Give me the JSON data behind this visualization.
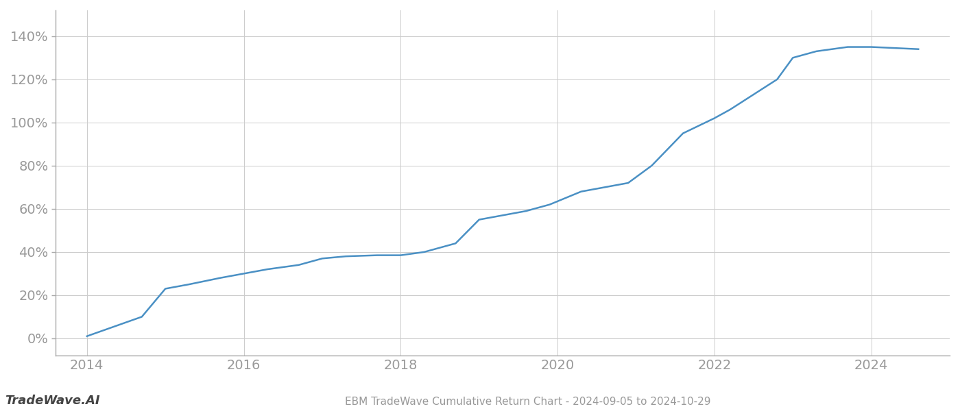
{
  "title": "EBM TradeWave Cumulative Return Chart - 2024-09-05 to 2024-10-29",
  "watermark": "TradeWave.AI",
  "line_color": "#4a90c4",
  "line_width": 1.8,
  "background_color": "#ffffff",
  "grid_color": "#cccccc",
  "x_years": [
    2014.0,
    2014.7,
    2015.0,
    2015.3,
    2015.7,
    2016.0,
    2016.3,
    2016.7,
    2017.0,
    2017.3,
    2017.7,
    2018.0,
    2018.3,
    2018.7,
    2019.0,
    2019.3,
    2019.6,
    2019.9,
    2020.1,
    2020.3,
    2020.6,
    2020.9,
    2021.2,
    2021.6,
    2022.0,
    2022.2,
    2022.5,
    2022.8,
    2023.0,
    2023.3,
    2023.7,
    2024.0,
    2024.6
  ],
  "y_values": [
    1,
    10,
    23,
    25,
    28,
    30,
    32,
    34,
    37,
    38,
    38.5,
    38.5,
    40,
    44,
    55,
    57,
    59,
    62,
    65,
    68,
    70,
    72,
    80,
    95,
    102,
    106,
    113,
    120,
    130,
    133,
    135,
    135,
    134
  ],
  "xlim": [
    2013.6,
    2025.0
  ],
  "ylim": [
    -8,
    152
  ],
  "yticks": [
    0,
    20,
    40,
    60,
    80,
    100,
    120,
    140
  ],
  "ytick_labels": [
    "0%",
    "20%",
    "40%",
    "60%",
    "80%",
    "100%",
    "120%",
    "140%"
  ],
  "xticks": [
    2014,
    2016,
    2018,
    2020,
    2022,
    2024
  ],
  "xtick_labels": [
    "2014",
    "2016",
    "2018",
    "2020",
    "2022",
    "2024"
  ],
  "title_fontsize": 11,
  "tick_fontsize": 14,
  "watermark_fontsize": 13,
  "axis_label_color": "#999999",
  "spine_color": "#aaaaaa",
  "left_spine_color": "#333333"
}
